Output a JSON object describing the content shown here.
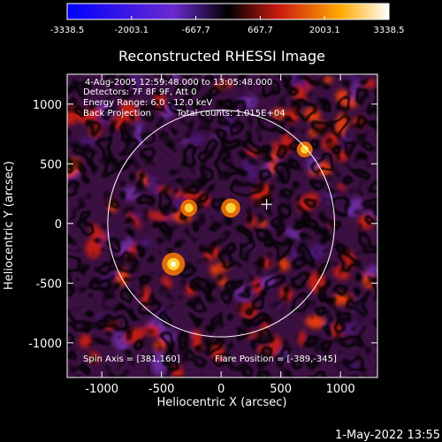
{
  "chart_data": {
    "type": "heatmap",
    "title": "Reconstructed RHESSI Image",
    "xlabel": "Heliocentric X (arcsec)",
    "ylabel": "Heliocentric Y (arcsec)",
    "xlim": [
      -1290,
      1310
    ],
    "ylim": [
      -1290,
      1250
    ],
    "xticks": [
      "-1000",
      "-500",
      "0",
      "500",
      "1000"
    ],
    "xtick_values": [
      -1000,
      -500,
      0,
      500,
      1000
    ],
    "yticks": [
      "-1000",
      "-500",
      "0",
      "500",
      "1000"
    ],
    "ytick_values": [
      -1000,
      -500,
      0,
      500,
      1000
    ],
    "colorbar": {
      "ticks": [
        "-3338.5",
        "-2003.1",
        "-667.7",
        "667.7",
        "2003.1",
        "3338.5"
      ],
      "min": -3338.5,
      "max": 3338.5
    },
    "annotations": [
      "4-Aug-2005 12:59:48.000 to 13:05:48.000",
      "Detectors: 7F 8F 9F, Att 0",
      "Energy Range: 6.0 - 12.0 keV",
      "Back Projection",
      "Total counts: 1.015E+04",
      "Spin Axis = [381,160]",
      "Flare Position = [-389,-345]"
    ],
    "solar_disk_radius": 950,
    "marker": [
      381,
      160
    ],
    "sources": [
      {
        "x": -400,
        "y": -340,
        "value": 3338.5
      },
      {
        "x": 80,
        "y": 130,
        "value": 2600
      },
      {
        "x": -270,
        "y": 130,
        "value": 2200
      },
      {
        "x": 700,
        "y": 620,
        "value": 2000
      }
    ]
  },
  "footer": {
    "date": "1-May-2022 13:55"
  },
  "colors": {
    "background": "#000000",
    "foreground": "#ffffff"
  }
}
